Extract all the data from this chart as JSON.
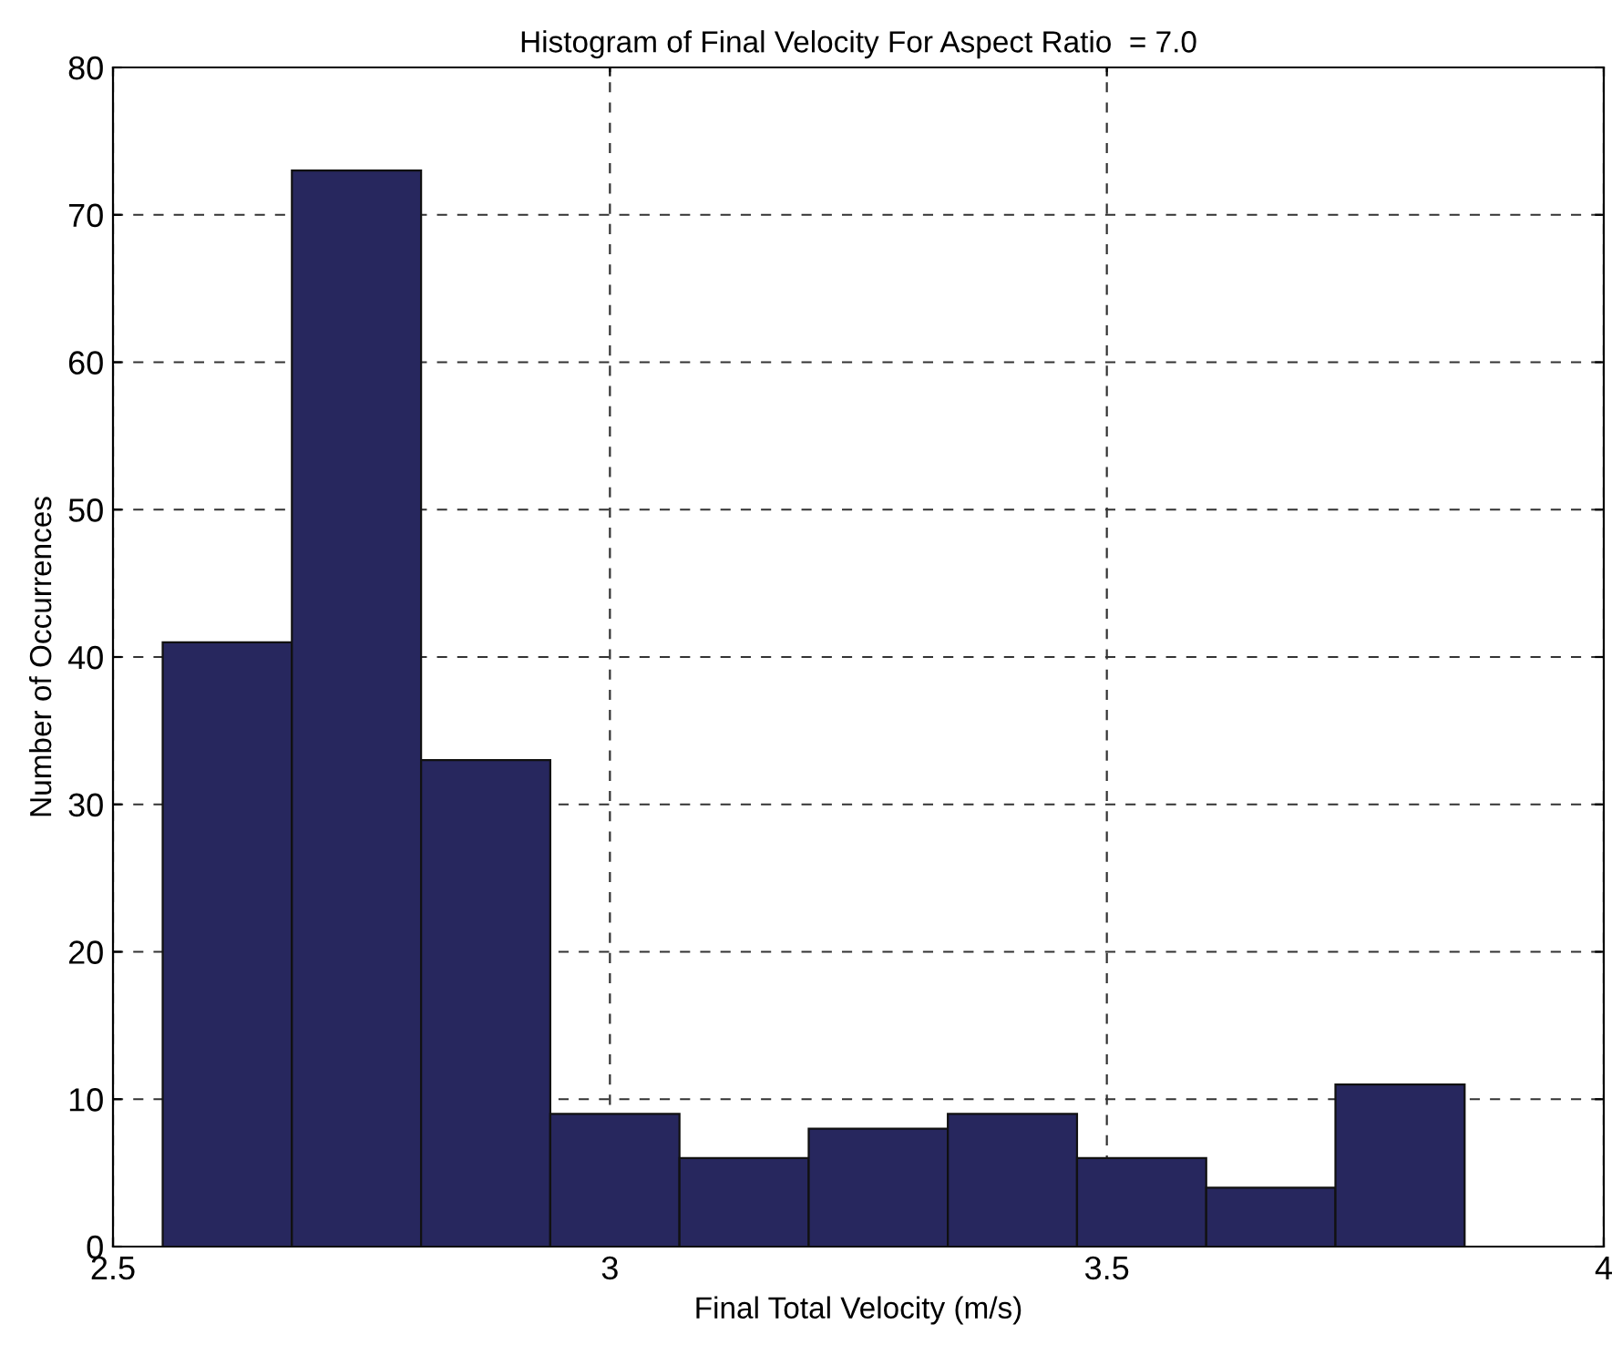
{
  "chart_data": {
    "type": "histogram",
    "title": "Histogram of Final Velocity For Aspect Ratio  = 7.0",
    "xlabel": "Final Total Velocity (m/s)",
    "ylabel": "Number of Occurrences",
    "bins": [
      2.55,
      2.68,
      2.81,
      2.94,
      3.07,
      3.2,
      3.34,
      3.47,
      3.6,
      3.73,
      3.86
    ],
    "values": [
      41,
      73,
      33,
      9,
      6,
      8,
      9,
      6,
      4,
      11
    ],
    "color": "#27275e",
    "xlim": [
      2.5,
      4
    ],
    "xticks": [
      2.5,
      3,
      3.5,
      4
    ],
    "ylim": [
      0,
      80
    ],
    "yticks": [
      0,
      10,
      20,
      30,
      40,
      50,
      60,
      70,
      80
    ],
    "grid": true,
    "line_style": "dashed"
  }
}
